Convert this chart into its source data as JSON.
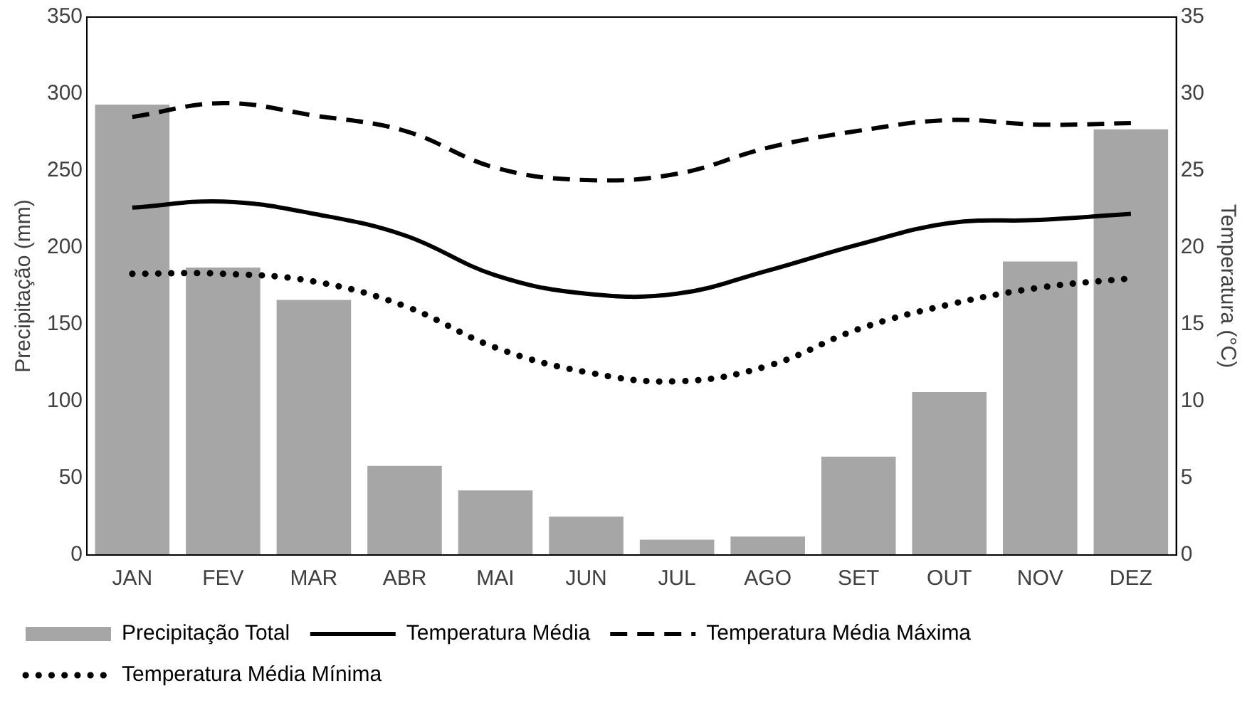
{
  "chart_data": {
    "type": "bar",
    "ylabel": "Precipitação (mm)",
    "y2label": "Temperatura (°C)",
    "categories": [
      "JAN",
      "FEV",
      "MAR",
      "ABR",
      "MAI",
      "JUN",
      "JUL",
      "AGO",
      "SET",
      "OUT",
      "NOV",
      "DEZ"
    ],
    "series": [
      {
        "name": "Precipitação Total",
        "color": "#a6a6a6",
        "values": [
          293,
          187,
          166,
          58,
          42,
          25,
          10,
          12,
          64,
          106,
          191,
          277
        ]
      },
      {
        "name": "Temperatura Média",
        "type": "line",
        "axis": "y2",
        "color": "#000000",
        "line_style": "solid",
        "values": [
          22.6,
          23.0,
          22.2,
          20.8,
          18.2,
          17.0,
          17.0,
          18.5,
          20.2,
          21.6,
          21.8,
          22.2
        ]
      },
      {
        "name": "Temperatura Média Máxima",
        "type": "line",
        "axis": "y2",
        "color": "#000000",
        "line_style": "dashed",
        "values": [
          28.5,
          29.4,
          28.6,
          27.6,
          25.2,
          24.4,
          24.8,
          26.5,
          27.6,
          28.3,
          28.0,
          28.1
        ]
      },
      {
        "name": "Temperatura Média Mínima",
        "type": "line",
        "axis": "y2",
        "color": "#000000",
        "line_style": "dotted",
        "values": [
          18.3,
          18.3,
          17.8,
          16.2,
          13.5,
          11.9,
          11.3,
          12.3,
          14.7,
          16.3,
          17.4,
          18.0
        ]
      }
    ],
    "ylim": [
      0,
      350
    ],
    "yticks": [
      0,
      50,
      100,
      150,
      200,
      250,
      300,
      350
    ],
    "y2lim": [
      0,
      35
    ],
    "y2ticks": [
      0,
      5,
      10,
      15,
      20,
      25,
      30,
      35
    ],
    "grid": false,
    "legend": "bottom",
    "marker": "none"
  }
}
